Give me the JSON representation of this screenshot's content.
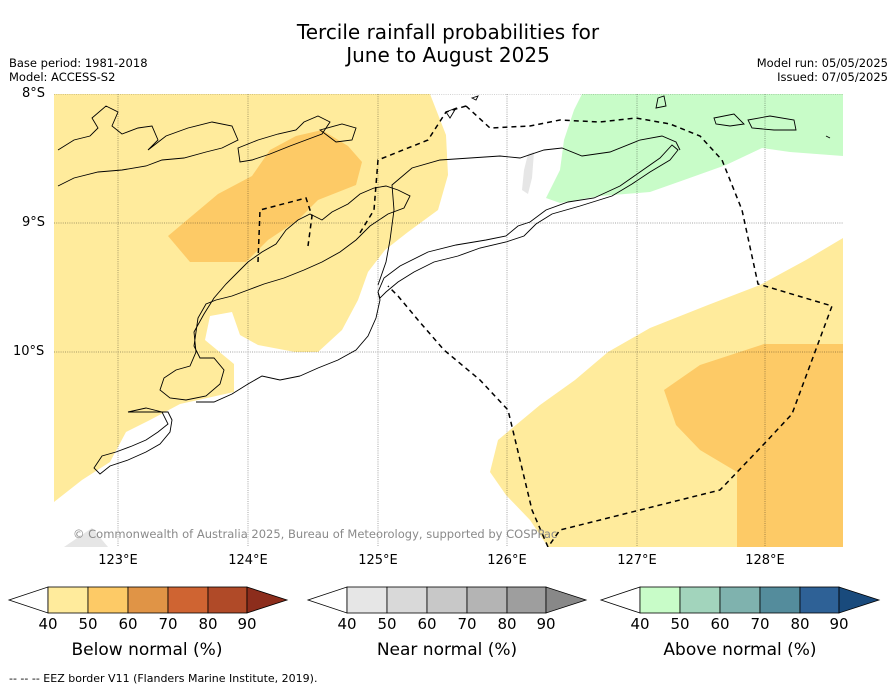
{
  "title": {
    "line1": "Tercile rainfall probabilities for",
    "line2": "June to August 2025"
  },
  "meta": {
    "base_period": "Base period: 1981-2018",
    "model": "Model: ACCESS-S2",
    "model_run": "Model run: 05/05/2025",
    "issued": "Issued: 07/05/2025"
  },
  "axes": {
    "lat_labels": [
      "8°S",
      "9°S",
      "10°S"
    ],
    "lon_labels": [
      "123°E",
      "124°E",
      "125°E",
      "126°E",
      "127°E",
      "128°E"
    ]
  },
  "copyright": "© Commonwealth of Australia 2025, Bureau of Meteorology, supported by COSPPac",
  "colorbars": [
    {
      "label": "Below normal (%)",
      "ticks": [
        "40",
        "50",
        "60",
        "70",
        "80",
        "90"
      ],
      "colors": [
        "#ffffff",
        "#ffeb9c",
        "#fdca66",
        "#e09446",
        "#cf6432",
        "#b04a28",
        "#8c2d1c"
      ]
    },
    {
      "label": "Near normal (%)",
      "ticks": [
        "40",
        "50",
        "60",
        "70",
        "80",
        "90"
      ],
      "colors": [
        "#ffffff",
        "#e6e6e6",
        "#d9d9d9",
        "#c8c8c8",
        "#b4b4b4",
        "#9e9e9e",
        "#888888"
      ]
    },
    {
      "label": "Above normal (%)",
      "ticks": [
        "40",
        "50",
        "60",
        "70",
        "80",
        "90"
      ],
      "colors": [
        "#ffffff",
        "#c8fcc8",
        "#a2d4bc",
        "#7fb2ae",
        "#548c9c",
        "#2e6196",
        "#194a7c"
      ]
    }
  ],
  "footer": "-- -- -- EEZ border V11 (Flanders Marine Institute, 2019)."
}
